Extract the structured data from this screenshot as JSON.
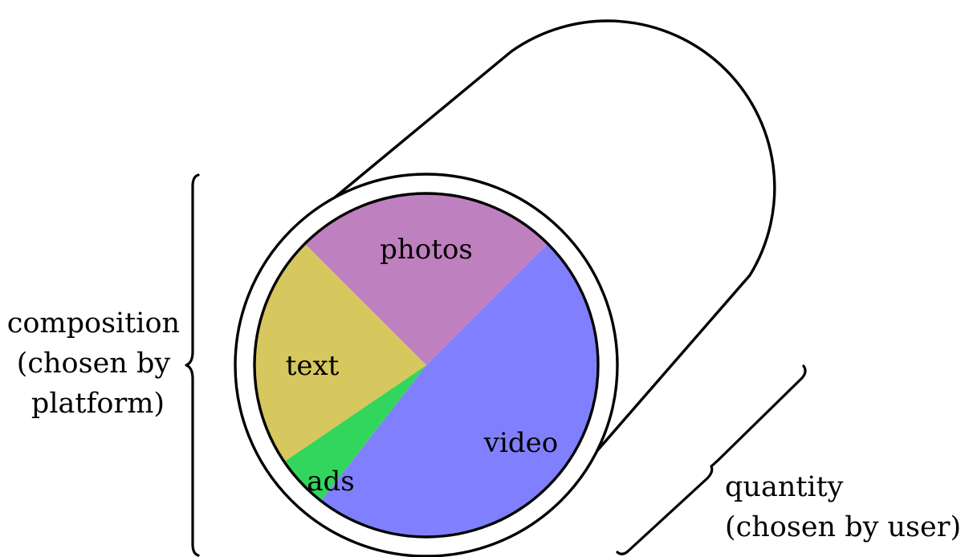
{
  "composition": {
    "label_lines": [
      "composition",
      "(chosen by",
      "platform)"
    ]
  },
  "quantity": {
    "label_lines": [
      "quantity",
      "(chosen by user)"
    ]
  },
  "pie": {
    "slices": [
      {
        "id": "photos",
        "label": "photos",
        "color": "#bf80bf",
        "share": 0.25
      },
      {
        "id": "video",
        "label": "video",
        "color": "#8080ff",
        "share": 0.48
      },
      {
        "id": "ads",
        "label": "ads",
        "color": "#33d65c",
        "share": 0.05
      },
      {
        "id": "text",
        "label": "text",
        "color": "#d6c75e",
        "share": 0.22
      }
    ]
  }
}
